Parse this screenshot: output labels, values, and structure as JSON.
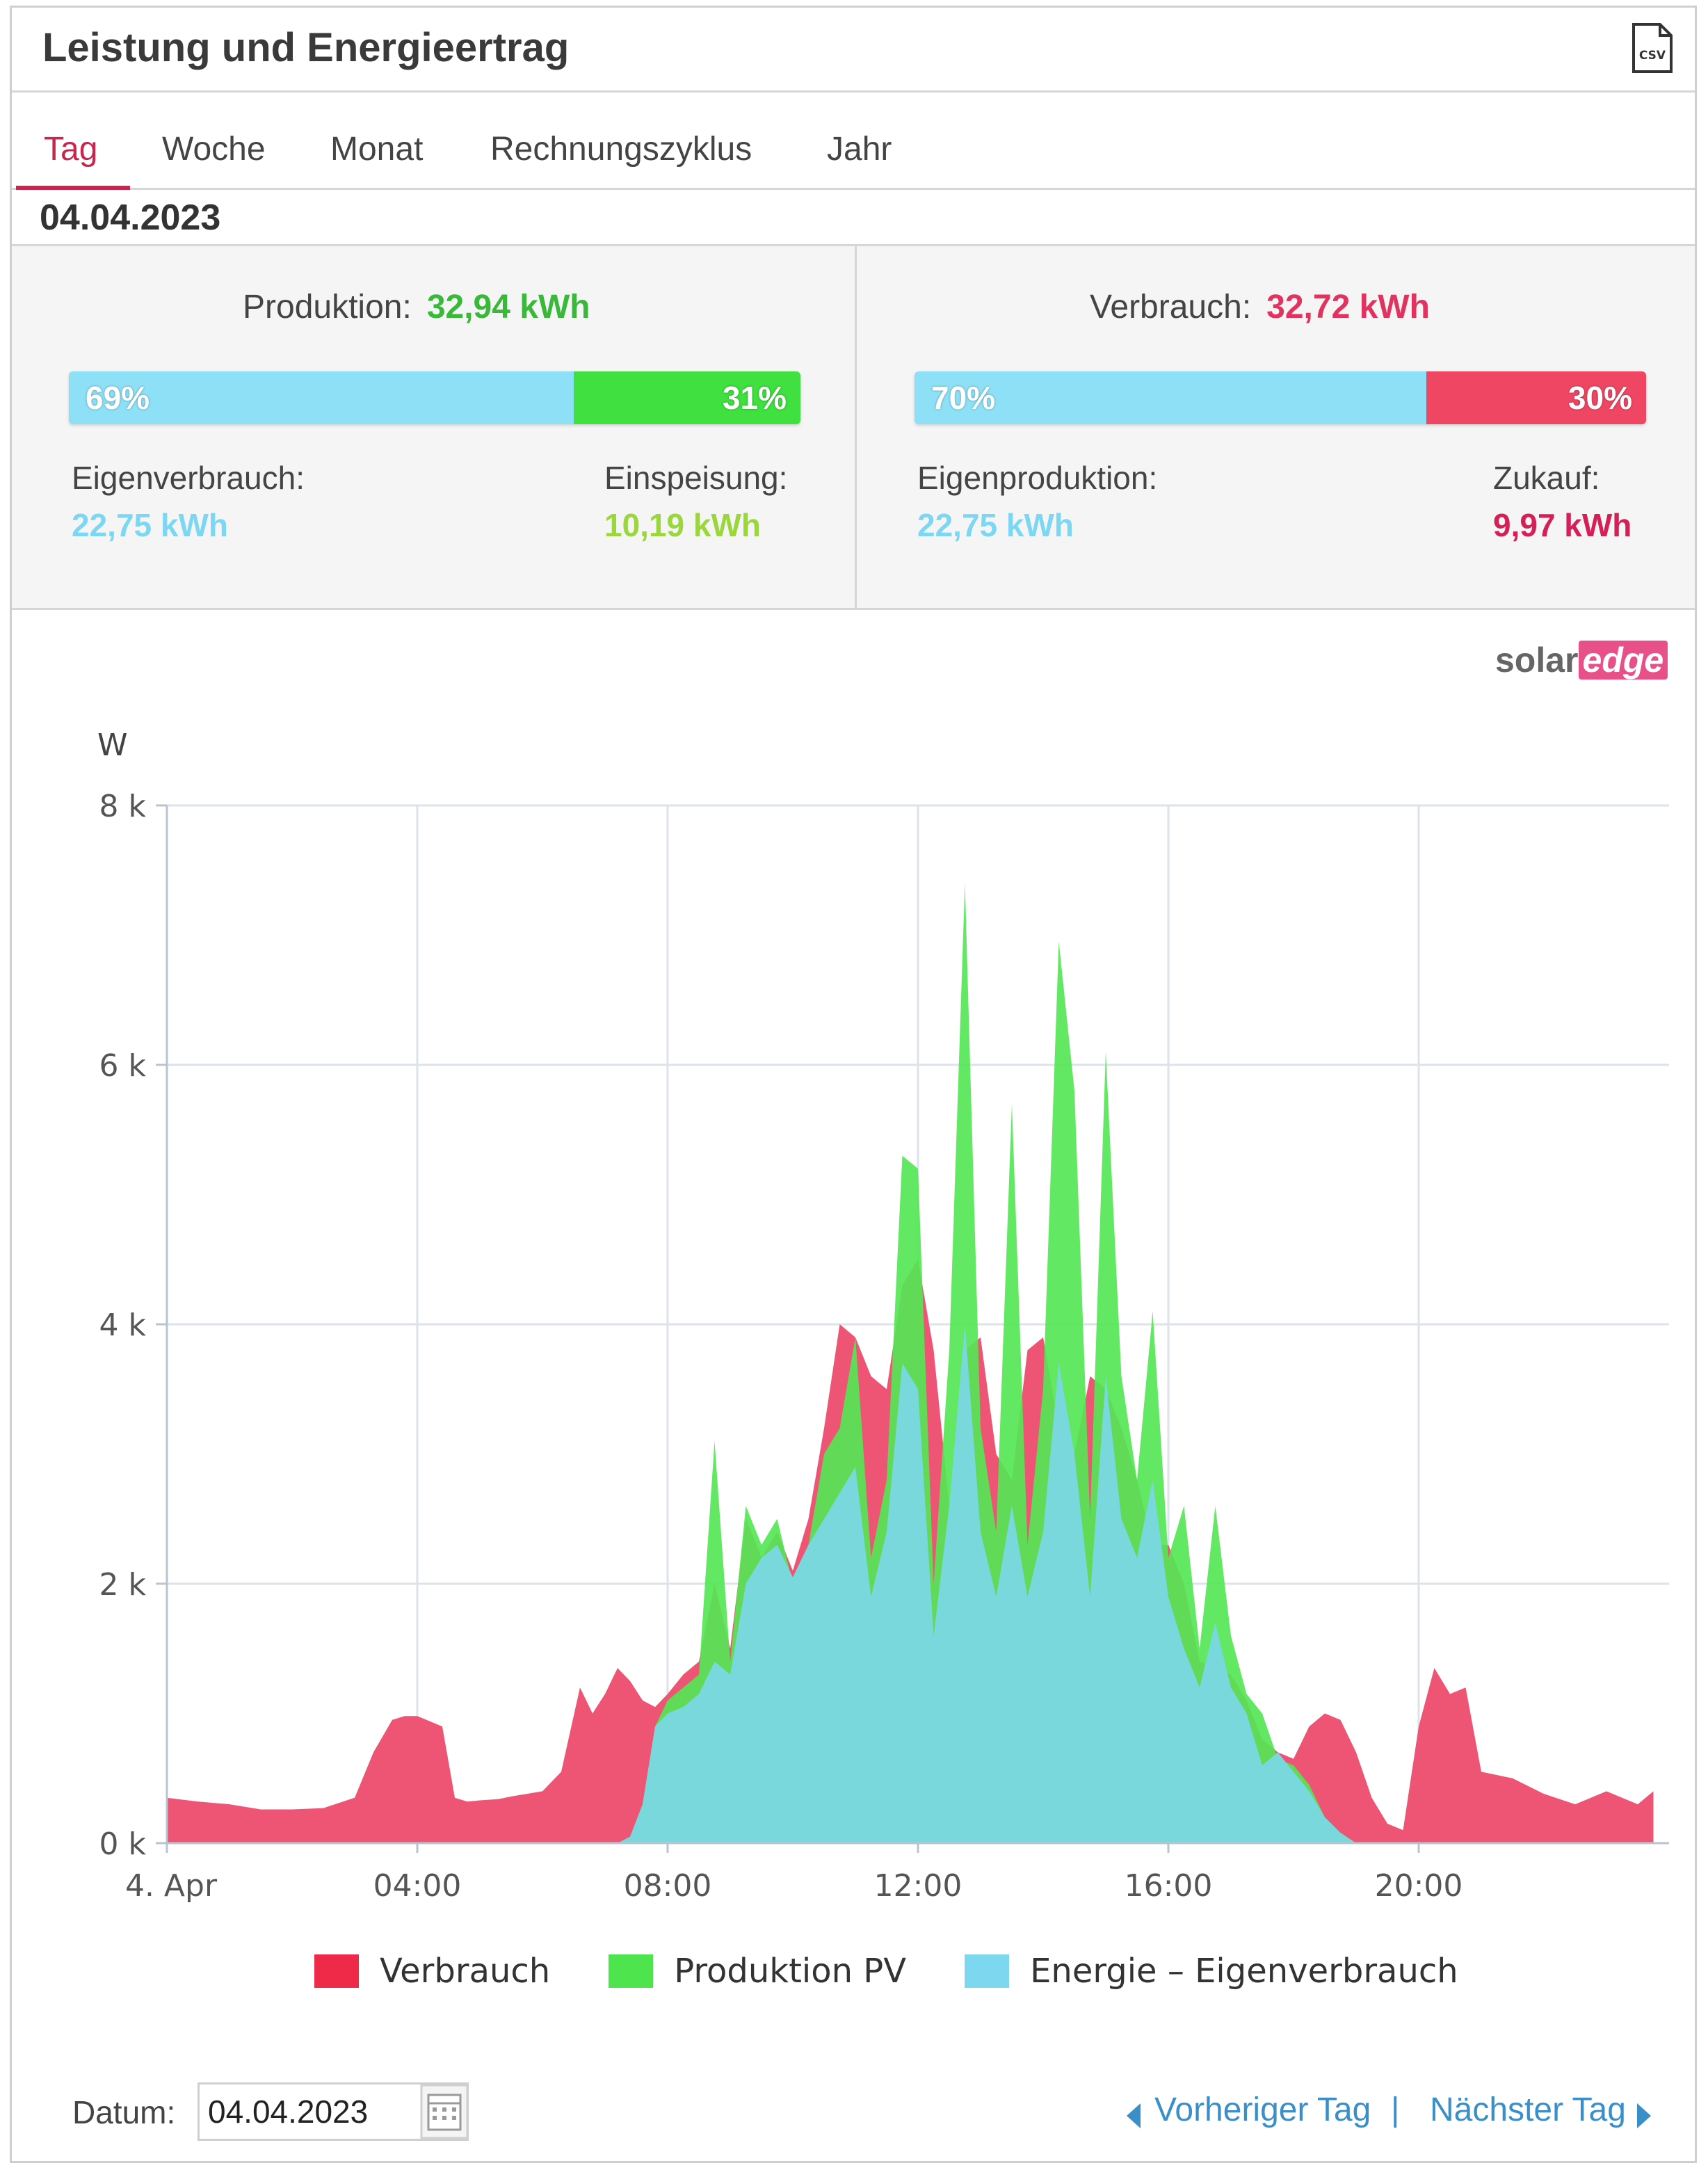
{
  "header": {
    "title": "Leistung und Energieertrag",
    "csv_icon": "csv-file-icon"
  },
  "tabs": [
    {
      "label": "Tag",
      "active": true
    },
    {
      "label": "Woche",
      "active": false
    },
    {
      "label": "Monat",
      "active": false
    },
    {
      "label": "Rechnungszyklus",
      "active": false
    },
    {
      "label": "Jahr",
      "active": false
    }
  ],
  "date_display": "04.04.2023",
  "production": {
    "label": "Produktion:",
    "value": "32,94 kWh",
    "bar_left_pct": "69%",
    "bar_right_pct": "31%",
    "bar_left_fraction": 0.69,
    "self_label": "Eigenverbrauch:",
    "self_value": "22,75 kWh",
    "feed_label": "Einspeisung:",
    "feed_value": "10,19 kWh"
  },
  "consumption": {
    "label": "Verbrauch:",
    "value": "32,72 kWh",
    "bar_left_pct": "70%",
    "bar_right_pct": "30%",
    "bar_left_fraction": 0.7,
    "self_label": "Eigenproduktion:",
    "self_value": "22,75 kWh",
    "buy_label": "Zukauf:",
    "buy_value": "9,97 kWh"
  },
  "colors": {
    "production_green": "#3ecf3e",
    "consumption_red": "#e83f5e",
    "self_blue": "#7fdcf2",
    "area_red": "#ee5574",
    "area_green": "#55e655",
    "area_blue": "#78d8dc",
    "accent": "#c8254f",
    "link": "#3b8fc9"
  },
  "logo": {
    "solar": "solar",
    "edge": "edge"
  },
  "chart_data": {
    "type": "area",
    "ylabel": "W",
    "ylim": [
      0,
      8000
    ],
    "yticks": [
      0,
      2000,
      4000,
      6000,
      8000
    ],
    "ytick_labels": [
      "0 k",
      "2 k",
      "4 k",
      "6 k",
      "8 k"
    ],
    "xlim": [
      0,
      23.75
    ],
    "xticks": [
      0,
      4,
      8,
      12,
      16,
      20
    ],
    "xtick_labels": [
      "4. Apr",
      "04:00",
      "08:00",
      "12:00",
      "16:00",
      "20:00"
    ],
    "grid": true,
    "legend_position": "bottom",
    "x": [
      0,
      0.5,
      1,
      1.5,
      2,
      2.5,
      3,
      3.3,
      3.6,
      3.8,
      4,
      4.4,
      4.6,
      4.8,
      5,
      5.3,
      5.5,
      6,
      6.3,
      6.6,
      6.8,
      7,
      7.2,
      7.4,
      7.6,
      7.8,
      8,
      8.25,
      8.5,
      8.75,
      9,
      9.25,
      9.5,
      9.75,
      10,
      10.25,
      10.5,
      10.75,
      11,
      11.25,
      11.5,
      11.75,
      12,
      12.25,
      12.5,
      12.75,
      13,
      13.25,
      13.5,
      13.75,
      14,
      14.25,
      14.5,
      14.75,
      15,
      15.25,
      15.5,
      15.75,
      16,
      16.25,
      16.5,
      16.75,
      17,
      17.25,
      17.5,
      17.75,
      18,
      18.25,
      18.5,
      18.75,
      19,
      19.25,
      19.5,
      19.75,
      20,
      20.25,
      20.5,
      20.75,
      21,
      21.5,
      22,
      22.5,
      23,
      23.5,
      23.75
    ],
    "series": [
      {
        "name": "Verbrauch",
        "color": "#ee5574",
        "values": [
          350,
          320,
          300,
          260,
          260,
          270,
          350,
          700,
          950,
          980,
          980,
          900,
          350,
          320,
          330,
          340,
          360,
          400,
          550,
          1200,
          1000,
          1150,
          1350,
          1250,
          1100,
          1050,
          1150,
          1300,
          1400,
          2000,
          1500,
          2500,
          2200,
          2400,
          2100,
          2500,
          3200,
          4000,
          3900,
          3600,
          3500,
          4300,
          4500,
          3800,
          2600,
          3800,
          3900,
          3000,
          2800,
          3800,
          3900,
          3200,
          3000,
          3600,
          3500,
          3200,
          2800,
          2300,
          2300,
          2000,
          1400,
          1350,
          1300,
          1100,
          800,
          700,
          650,
          900,
          1000,
          950,
          700,
          350,
          150,
          100,
          900,
          1350,
          1150,
          1200,
          550,
          500,
          380,
          300,
          400,
          300,
          400
        ]
      },
      {
        "name": "Produktion PV",
        "color": "#55e655",
        "values": [
          0,
          0,
          0,
          0,
          0,
          0,
          0,
          0,
          0,
          0,
          0,
          0,
          0,
          0,
          0,
          0,
          0,
          0,
          0,
          0,
          0,
          0,
          0,
          50,
          300,
          900,
          1100,
          1200,
          1300,
          3100,
          1400,
          2600,
          2300,
          2500,
          2000,
          2300,
          3000,
          3200,
          3900,
          2200,
          2800,
          5300,
          5200,
          2000,
          3800,
          7400,
          3200,
          2400,
          5700,
          2300,
          3500,
          6950,
          5800,
          2500,
          6100,
          3600,
          2800,
          4100,
          2200,
          2600,
          1500,
          2600,
          1600,
          1150,
          1000,
          650,
          600,
          450,
          200,
          80,
          0,
          0,
          0,
          0,
          0,
          0,
          0,
          0,
          0,
          0,
          0,
          0,
          0,
          0,
          0
        ]
      },
      {
        "name": "Energie – Eigenverbrauch",
        "color": "#78d8dc",
        "values": [
          0,
          0,
          0,
          0,
          0,
          0,
          0,
          0,
          0,
          0,
          0,
          0,
          0,
          0,
          0,
          0,
          0,
          0,
          0,
          0,
          0,
          0,
          0,
          50,
          300,
          900,
          1000,
          1050,
          1150,
          1400,
          1300,
          2000,
          2200,
          2300,
          2050,
          2300,
          2500,
          2700,
          2900,
          1900,
          2400,
          3700,
          3500,
          1600,
          2600,
          4000,
          2400,
          1900,
          2600,
          1900,
          2400,
          3700,
          3000,
          1900,
          3600,
          2500,
          2200,
          2800,
          1900,
          1500,
          1200,
          1700,
          1200,
          1000,
          600,
          700,
          550,
          400,
          200,
          80,
          0,
          0,
          0,
          0,
          0,
          0,
          0,
          0,
          0,
          0,
          0,
          0,
          0,
          0,
          0
        ]
      }
    ]
  },
  "legend": [
    {
      "label": "Verbrauch",
      "color": "#ee2a48"
    },
    {
      "label": "Produktion PV",
      "color": "#4ee44e"
    },
    {
      "label": "Energie – Eigenverbrauch",
      "color": "#7dd8ef"
    }
  ],
  "footer": {
    "date_label": "Datum:",
    "date_value": "04.04.2023",
    "calendar_icon": "calendar-icon",
    "prev_label": "Vorheriger Tag",
    "separator": "|",
    "next_label": "Nächster Tag"
  }
}
